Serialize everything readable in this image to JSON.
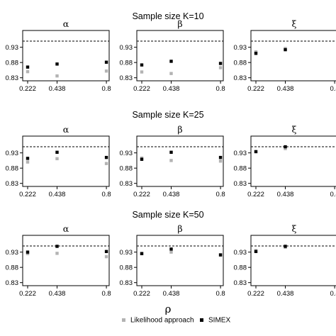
{
  "chart_data": {
    "type": "scatter",
    "xlabel": "ρ",
    "x_ticks": [
      "0.222",
      "0.438",
      "0.8"
    ],
    "y_ticks": [
      "0.83",
      "0.88",
      "0.93"
    ],
    "reference_line": 0.95,
    "legend": {
      "placement": "bottom",
      "entries": [
        {
          "label": "Likelihood approach",
          "color": "#b3b3b3"
        },
        {
          "label": "SIMEX",
          "color": "#000000"
        }
      ]
    },
    "rows": [
      {
        "title": "Sample size K=10",
        "panels": [
          {
            "param": "α",
            "x": [
              0.222,
              0.438,
              0.8
            ],
            "likelihood": [
              0.85,
              0.836,
              0.852
            ],
            "simex": [
              0.865,
              0.875,
              0.881
            ]
          },
          {
            "param": "β",
            "x": [
              0.222,
              0.438,
              0.8
            ],
            "likelihood": [
              0.849,
              0.844,
              0.863
            ],
            "simex": [
              0.872,
              0.884,
              0.877
            ]
          },
          {
            "param": "ξ",
            "x": [
              0.222,
              0.438
            ],
            "likelihood": [
              0.915,
              0.926
            ],
            "simex": [
              0.91,
              0.922
            ]
          }
        ]
      },
      {
        "title": "Sample size K=25",
        "panels": [
          {
            "param": "α",
            "x": [
              0.222,
              0.438,
              0.8
            ],
            "likelihood": [
              0.9,
              0.911,
              0.895
            ],
            "simex": [
              0.912,
              0.932,
              0.915
            ]
          },
          {
            "param": "β",
            "x": [
              0.222,
              0.438,
              0.8
            ],
            "likelihood": [
              0.913,
              0.905,
              0.903
            ],
            "simex": [
              0.909,
              0.932,
              0.915
            ]
          },
          {
            "param": "ξ",
            "x": [
              0.222,
              0.438
            ],
            "likelihood": [
              0.934,
              0.944
            ],
            "simex": [
              0.934,
              0.95
            ]
          }
        ]
      },
      {
        "title": "Sample size K=50",
        "panels": [
          {
            "param": "α",
            "x": [
              0.222,
              0.438,
              0.8
            ],
            "likelihood": [
              0.925,
              0.926,
              0.915
            ],
            "simex": [
              0.93,
              0.949,
              0.932
            ]
          },
          {
            "param": "β",
            "x": [
              0.222,
              0.438,
              0.8
            ],
            "likelihood": [
              0.926,
              0.93,
              0.92
            ],
            "simex": [
              0.925,
              0.94,
              0.921
            ]
          },
          {
            "param": "ξ",
            "x": [
              0.222,
              0.438
            ],
            "likelihood": [
              0.935,
              0.946
            ],
            "simex": [
              0.932,
              0.949
            ]
          }
        ]
      }
    ]
  }
}
